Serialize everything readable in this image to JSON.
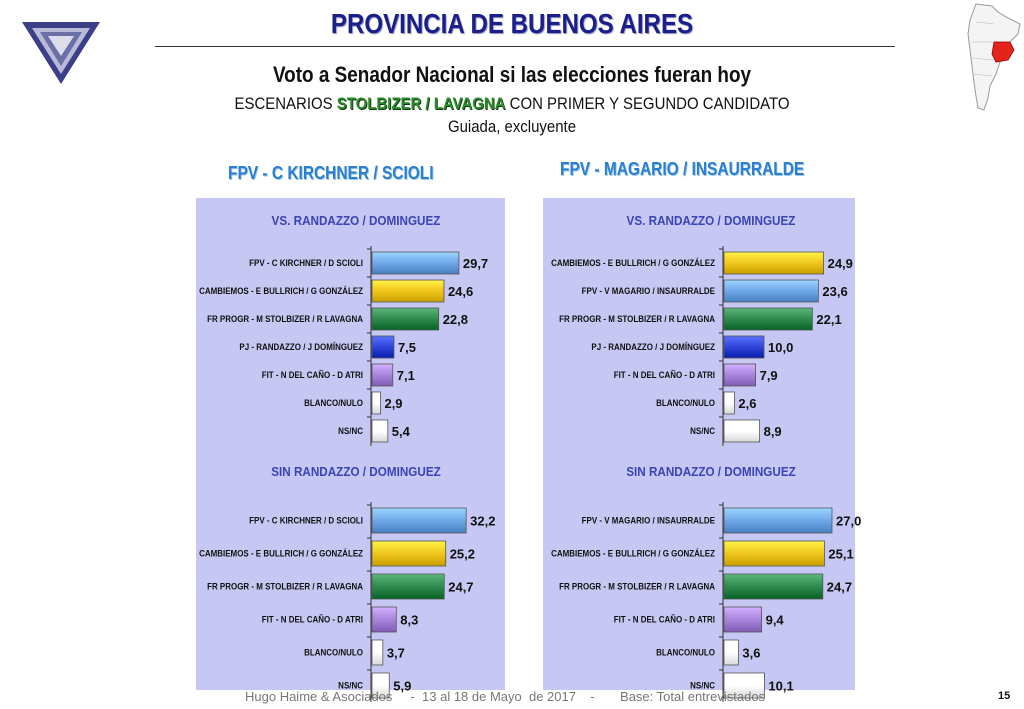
{
  "header": {
    "title": "PROVINCIA DE BUENOS AIRES",
    "subtitle": "Voto a Senador Nacional si las elecciones fueran hoy",
    "scenario_prefix": "ESCENARIOS ",
    "scenario_highlight": "STOLBIZER / LAVAGNA",
    "scenario_suffix": " CON PRIMER Y SEGUNDO CANDIDATO",
    "guided": "Guiada, excluyente"
  },
  "columns": [
    {
      "title": "FPV - C KIRCHNER / SCIOLI"
    },
    {
      "title": "FPV - MAGARIO / INSAURRALDE"
    }
  ],
  "footer": {
    "text": "Hugo Haime & Asociados     -  13 al 18 de Mayo  de 2017    -       Base: Total entrevistados",
    "page": "15"
  },
  "colors": {
    "fpv": "#6fa8e8",
    "cambiemos": "#f0c61c",
    "frente": "#2f8a4e",
    "pj": "#2f45d8",
    "fit": "#a884dc",
    "blanco": "#ffffff",
    "nsnc": "#ffffff",
    "panel": "#c6c7f2"
  },
  "chart_data": [
    {
      "type": "bar",
      "orientation": "horizontal",
      "title": "VS. RANDAZZO / DOMINGUEZ",
      "categories": [
        "FPV - C KIRCHNER / D SCIOLI",
        "CAMBIEMOS - E BULLRICH / G GONZÁLEZ",
        "FR PROGR - M STOLBIZER / R LAVAGNA",
        "PJ - RANDAZZO / J DOMÍNGUEZ",
        "FIT - N DEL CAÑO - D ATRI",
        "BLANCO/NULO",
        "NS/NC"
      ],
      "values": [
        29.7,
        24.6,
        22.8,
        7.5,
        7.1,
        2.9,
        5.4
      ],
      "labels": [
        "29,7",
        "24,6",
        "22,8",
        "7,5",
        "7,1",
        "2,9",
        "5,4"
      ],
      "color_keys": [
        "fpv",
        "cambiemos",
        "frente",
        "pj",
        "fit",
        "blanco",
        "nsnc"
      ],
      "xlim": [
        0,
        40
      ]
    },
    {
      "type": "bar",
      "orientation": "horizontal",
      "title": "VS. RANDAZZO / DOMINGUEZ",
      "categories": [
        "CAMBIEMOS - E BULLRICH / G GONZÁLEZ",
        "FPV - V MAGARIO / INSAURRALDE",
        "FR PROGR - M STOLBIZER / R LAVAGNA",
        "PJ - RANDAZZO / J DOMÍNGUEZ",
        "FIT - N DEL CAÑO - D ATRI",
        "BLANCO/NULO",
        "NS/NC"
      ],
      "values": [
        24.9,
        23.6,
        22.1,
        10.0,
        7.9,
        2.6,
        8.9
      ],
      "labels": [
        "24,9",
        "23,6",
        "22,1",
        "10,0",
        "7,9",
        "2,6",
        "8,9"
      ],
      "color_keys": [
        "cambiemos",
        "fpv",
        "frente",
        "pj",
        "fit",
        "blanco",
        "nsnc"
      ],
      "xlim": [
        0,
        31
      ]
    },
    {
      "type": "bar",
      "orientation": "horizontal",
      "title": "SIN RANDAZZO / DOMINGUEZ",
      "categories": [
        "FPV - C KIRCHNER / D SCIOLI",
        "CAMBIEMOS - E BULLRICH / G GONZÁLEZ",
        "FR PROGR - M STOLBIZER / R LAVAGNA",
        "FIT - N DEL CAÑO - D ATRI",
        "BLANCO/NULO",
        "NS/NC"
      ],
      "values": [
        32.2,
        25.2,
        24.7,
        8.3,
        3.7,
        5.9
      ],
      "labels": [
        "32,2",
        "25,2",
        "24,7",
        "8,3",
        "3,7",
        "5,9"
      ],
      "color_keys": [
        "fpv",
        "cambiemos",
        "frente",
        "fit",
        "blanco",
        "nsnc"
      ],
      "xlim": [
        0,
        40
      ]
    },
    {
      "type": "bar",
      "orientation": "horizontal",
      "title": "SIN RANDAZZO / DOMINGUEZ",
      "categories": [
        "FPV - V MAGARIO / INSAURRALDE",
        "CAMBIEMOS - E BULLRICH / G GONZÁLEZ",
        "FR PROGR - M STOLBIZER / R LAVAGNA",
        "FIT - N DEL CAÑO - D ATRI",
        "BLANCO/NULO",
        "NS/NC"
      ],
      "values": [
        27.0,
        25.1,
        24.7,
        9.4,
        3.6,
        10.1
      ],
      "labels": [
        "27,0",
        "25,1",
        "24,7",
        "9,4",
        "3,6",
        "10,1"
      ],
      "color_keys": [
        "fpv",
        "cambiemos",
        "frente",
        "fit",
        "blanco",
        "nsnc"
      ],
      "xlim": [
        0,
        31
      ]
    }
  ]
}
